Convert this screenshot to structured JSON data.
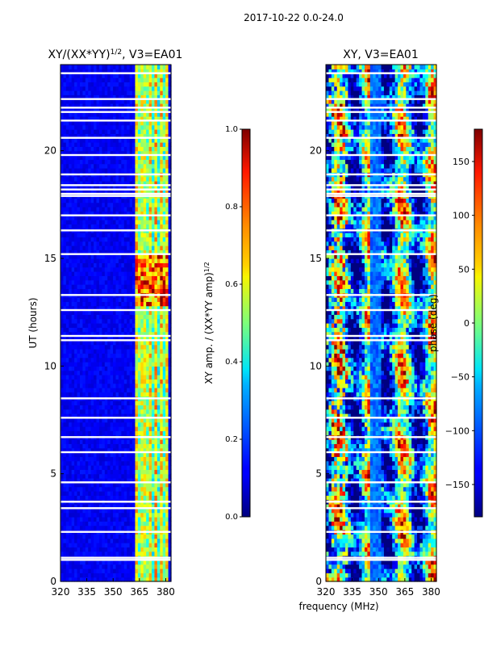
{
  "suptitle": "2017-10-22 0.0-24.0",
  "chart_data": [
    {
      "type": "heatmap",
      "id": "amp",
      "title_main": "XY/(XX*YY)",
      "title_sup": "1/2",
      "title_tail": ", V3=EA01",
      "xlabel": "",
      "ylabel": "UT (hours)",
      "xlim": [
        320,
        383
      ],
      "ylim": [
        0,
        24
      ],
      "xticks": [
        320,
        335,
        350,
        365,
        380
      ],
      "yticks": [
        0,
        5,
        10,
        15,
        20
      ],
      "colorbar": {
        "label_main": "XY amp. / (XX*YY amp)",
        "label_sup": "1/2",
        "range": [
          0.0,
          1.0
        ],
        "ticks": [
          "0.0",
          "0.2",
          "0.4",
          "0.6",
          "0.8",
          "1.0"
        ],
        "tick_values": [
          0.0,
          0.2,
          0.4,
          0.6,
          0.8,
          1.0
        ]
      },
      "gaps_hours": [
        1.0,
        1.1,
        2.3,
        3.4,
        3.7,
        4.6,
        6.0,
        6.7,
        7.6,
        8.5,
        11.2,
        11.4,
        12.6,
        13.3,
        15.2,
        16.3,
        17.0,
        17.9,
        18.0,
        18.2,
        18.4,
        18.9,
        19.8,
        20.6,
        21.4,
        21.8,
        22.0,
        22.4,
        23.6
      ]
    },
    {
      "type": "heatmap",
      "id": "phase",
      "title_main": "XY, V3=EA01",
      "title_sup": "",
      "title_tail": "",
      "xlabel": "frequency (MHz)",
      "ylabel": "",
      "xlim": [
        320,
        383
      ],
      "ylim": [
        0,
        24
      ],
      "xticks": [
        320,
        335,
        350,
        365,
        380
      ],
      "yticks": [
        0,
        5,
        10,
        15,
        20
      ],
      "colorbar": {
        "label_main": "phase (deg)",
        "label_sup": "",
        "range": [
          -180,
          180
        ],
        "ticks": [
          "−150",
          "−100",
          "−50",
          "0",
          "50",
          "100",
          "150"
        ],
        "tick_values": [
          -150,
          -100,
          -50,
          0,
          50,
          100,
          150
        ]
      },
      "gaps_hours": [
        1.0,
        1.1,
        2.3,
        3.4,
        3.7,
        4.6,
        6.0,
        6.7,
        7.6,
        8.5,
        11.2,
        11.4,
        12.6,
        13.3,
        15.2,
        16.3,
        17.0,
        17.9,
        18.0,
        18.2,
        18.4,
        18.9,
        19.8,
        20.6,
        21.4,
        21.8,
        22.0,
        22.4,
        23.6
      ]
    }
  ]
}
